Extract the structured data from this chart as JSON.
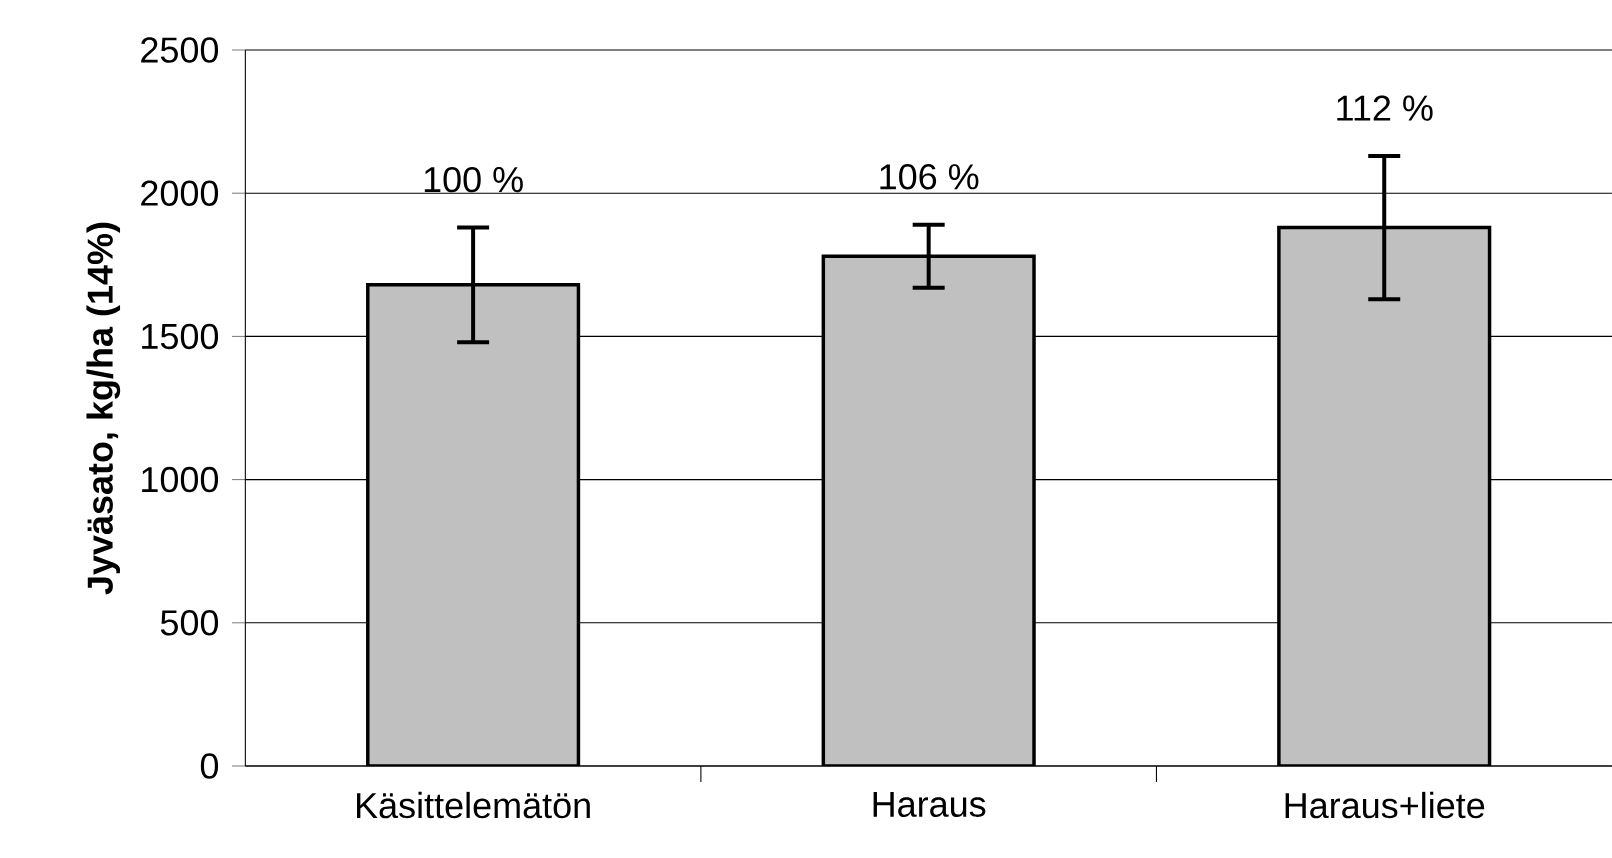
{
  "chart_data": {
    "type": "bar",
    "ylabel": "Jyväsato, kg/ha (14%)",
    "categories": [
      "Käsittelemätön",
      "Haraus",
      "Haraus+liete"
    ],
    "values": [
      1680,
      1780,
      1880
    ],
    "errors": [
      200,
      110,
      250
    ],
    "annotations": [
      {
        "text": "100 %",
        "x": "Käsittelemätön",
        "y": 1680
      },
      {
        "text": "106 %",
        "x": "Haraus",
        "y": 1780
      },
      {
        "text": "112 %",
        "x": "Haraus+liete",
        "y": 1880
      }
    ],
    "color": "#c0c0c0",
    "ylim": [
      0,
      2500
    ],
    "yticks": [
      0,
      500,
      1000,
      1500,
      2000,
      2500
    ],
    "grid": "y"
  }
}
